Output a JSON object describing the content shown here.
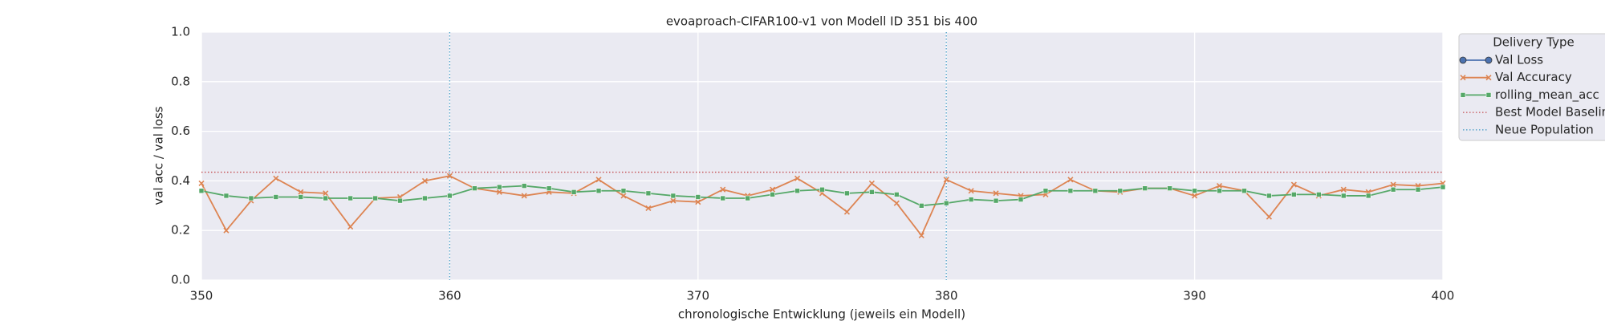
{
  "chart_data": {
    "type": "line",
    "title": "evoaproach-CIFAR100-v1 von Modell ID 351 bis 400",
    "xlabel": "chronologische Entwicklung (jeweils ein Modell)",
    "ylabel": "val acc / val loss",
    "legend_title": "Delivery Type",
    "legend": "upper right outside",
    "grid": true,
    "x": [
      350,
      351,
      352,
      353,
      354,
      355,
      356,
      357,
      358,
      359,
      360,
      361,
      362,
      363,
      364,
      365,
      366,
      367,
      368,
      369,
      370,
      371,
      372,
      373,
      374,
      375,
      376,
      377,
      378,
      379,
      380,
      381,
      382,
      383,
      384,
      385,
      386,
      387,
      388,
      389,
      390,
      391,
      392,
      393,
      394,
      395,
      396,
      397,
      398,
      399,
      400
    ],
    "series": [
      {
        "name": "Val Loss",
        "color": "#4c72b0",
        "marker": "circle",
        "values": [
          null,
          null,
          null,
          null,
          null,
          null,
          null,
          null,
          null,
          null,
          null,
          null,
          null,
          null,
          null,
          null,
          null,
          null,
          null,
          null,
          null,
          null,
          null,
          null,
          null,
          null,
          null,
          null,
          null,
          null,
          null,
          null,
          null,
          null,
          null,
          null,
          null,
          null,
          null,
          null,
          null,
          null,
          null,
          null,
          null,
          null,
          null,
          null,
          null,
          null,
          null
        ]
      },
      {
        "name": "Val Accuracy",
        "color": "#dd8452",
        "marker": "x",
        "values": [
          0.39,
          0.2,
          0.32,
          0.41,
          0.355,
          0.35,
          0.215,
          0.33,
          0.335,
          0.4,
          0.42,
          0.37,
          0.355,
          0.34,
          0.355,
          0.35,
          0.405,
          0.34,
          0.29,
          0.32,
          0.315,
          0.365,
          0.34,
          0.365,
          0.41,
          0.35,
          0.275,
          0.39,
          0.31,
          0.18,
          0.405,
          0.36,
          0.35,
          0.34,
          0.345,
          0.405,
          0.36,
          0.355,
          0.37,
          0.37,
          0.34,
          0.38,
          0.36,
          0.255,
          0.385,
          0.34,
          0.365,
          0.355,
          0.385,
          0.38,
          0.39
        ]
      },
      {
        "name": "rolling_mean_acc",
        "color": "#55a868",
        "marker": "square",
        "values": [
          0.36,
          0.34,
          0.33,
          0.335,
          0.335,
          0.33,
          0.33,
          0.33,
          0.32,
          0.33,
          0.34,
          0.37,
          0.375,
          0.38,
          0.37,
          0.355,
          0.36,
          0.36,
          0.35,
          0.34,
          0.335,
          0.33,
          0.33,
          0.345,
          0.36,
          0.365,
          0.35,
          0.355,
          0.345,
          0.3,
          0.31,
          0.325,
          0.32,
          0.325,
          0.36,
          0.36,
          0.36,
          0.36,
          0.37,
          0.37,
          0.36,
          0.36,
          0.36,
          0.34,
          0.345,
          0.345,
          0.34,
          0.34,
          0.365,
          0.365,
          0.375
        ]
      }
    ],
    "baseline": {
      "name": "Best Model Baseline",
      "value": 0.435,
      "color": "#c44e52"
    },
    "vlines": {
      "name": "Neue Population",
      "x": [
        360,
        380
      ],
      "color": "#4c9fc8"
    },
    "xlim": [
      350,
      400
    ],
    "xticks": [
      350,
      360,
      370,
      380,
      390,
      400
    ],
    "ylim": [
      0,
      1
    ],
    "yticks": [
      {
        "value": 0,
        "label": "0.0"
      },
      {
        "value": 0.2,
        "label": "0.2"
      },
      {
        "value": 0.4,
        "label": "0.4"
      },
      {
        "value": 0.6,
        "label": "0.6"
      },
      {
        "value": 0.8,
        "label": "0.8"
      },
      {
        "value": 1,
        "label": "1.0"
      }
    ]
  }
}
